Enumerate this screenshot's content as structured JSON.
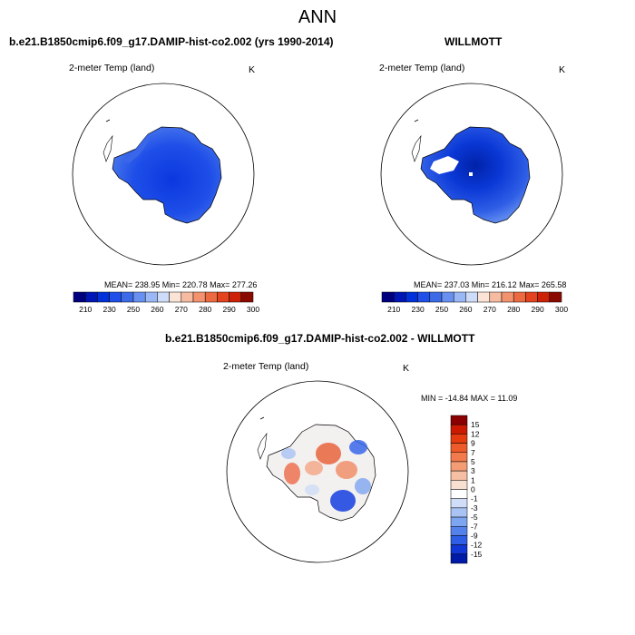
{
  "title": "ANN",
  "panel_left": {
    "case_title": "b.e21.B1850cmip6.f09_g17.DAMIP-hist-co2.002 (yrs 1990-2014)",
    "variable": "2-meter Temp (land)",
    "units": "K",
    "stats": "MEAN= 238.95  Min= 220.78  Max= 277.26"
  },
  "panel_right": {
    "case_title": "WILLMOTT",
    "variable": "2-meter Temp (land)",
    "units": "K",
    "stats": "MEAN= 237.03  Min= 216.12  Max= 265.58"
  },
  "panel_diff": {
    "case_title": "b.e21.B1850cmip6.f09_g17.DAMIP-hist-co2.002 - WILLMOTT",
    "variable": "2-meter Temp (land)",
    "units": "K",
    "stats": "MIN = -14.84  MAX =  11.09"
  },
  "abs_colorbar": {
    "labels": [
      "210",
      "230",
      "250",
      "260",
      "270",
      "280",
      "290",
      "300"
    ],
    "colors": [
      "#00007f",
      "#0016b4",
      "#0030d9",
      "#1f4fe8",
      "#3d6be8",
      "#6890f0",
      "#9ab8f5",
      "#cddcf8",
      "#fbe4d6",
      "#f6bba0",
      "#f2926e",
      "#ec6a42",
      "#e3431f",
      "#cc2207",
      "#8b0a00"
    ]
  },
  "diff_colorbar": {
    "labels": [
      "15",
      "12",
      "9",
      "7",
      "5",
      "3",
      "1",
      "0",
      "-1",
      "-3",
      "-5",
      "-7",
      "-9",
      "-12",
      "-15"
    ],
    "colors": [
      "#8b0000",
      "#cc1a00",
      "#e63a0f",
      "#ef5a2a",
      "#f27a4c",
      "#f49c74",
      "#f6bfa3",
      "#f9dfd0",
      "#ffffff",
      "#d0ddf8",
      "#a9c3f4",
      "#7ea5ef",
      "#5582ea",
      "#2f5ee6",
      "#1036d6",
      "#001aa8"
    ]
  }
}
